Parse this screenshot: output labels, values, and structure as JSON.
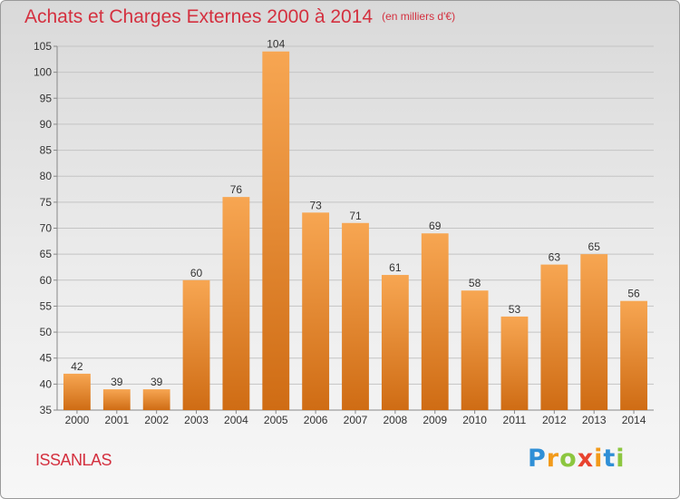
{
  "chart_data": {
    "type": "bar",
    "title": "Achats et Charges Externes 2000 à 2014",
    "subtitle": "(en milliers d'€)",
    "categories": [
      "2000",
      "2001",
      "2002",
      "2003",
      "2004",
      "2005",
      "2006",
      "2007",
      "2008",
      "2009",
      "2010",
      "2011",
      "2012",
      "2013",
      "2014"
    ],
    "values": [
      42,
      39,
      39,
      60,
      76,
      104,
      73,
      71,
      61,
      69,
      58,
      53,
      63,
      65,
      56
    ],
    "ylim": [
      35,
      105
    ],
    "yticks": [
      35,
      40,
      45,
      50,
      55,
      60,
      65,
      70,
      75,
      80,
      85,
      90,
      95,
      100,
      105
    ],
    "grid": true,
    "bar_color": "#f0953a"
  },
  "town": "ISSANLAS",
  "logo": {
    "letters": [
      "P",
      "r",
      "o",
      "x",
      "i",
      "t",
      "i"
    ],
    "colors": [
      "#2f8fd6",
      "#f29a1a",
      "#8cc63f",
      "#e8432f",
      "#f29a1a",
      "#2f8fd6",
      "#8cc63f"
    ]
  }
}
